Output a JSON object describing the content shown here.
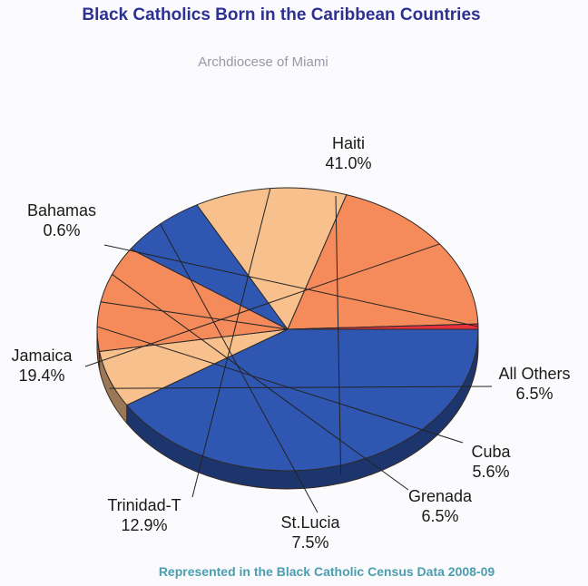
{
  "chart_data": {
    "type": "pie",
    "title": "Black Catholics Born in the Caribbean Countries",
    "subtitle": "Archdiocese of Miami",
    "source": "Represented in the Black Catholic Census Data 2008-09",
    "slices": [
      {
        "label": "Haiti",
        "pct_label": "41.0%",
        "value": 41.0,
        "color": "#2f56b0"
      },
      {
        "label": "All Others",
        "pct_label": "6.5%",
        "value": 6.5,
        "color": "#f8c08c"
      },
      {
        "label": "Cuba",
        "pct_label": "5.6%",
        "value": 5.6,
        "color": "#f58a5a"
      },
      {
        "label": "Grenada",
        "pct_label": "6.5%",
        "value": 6.5,
        "color": "#f58a5a"
      },
      {
        "label": "St.Lucia",
        "pct_label": "7.5%",
        "value": 7.5,
        "color": "#2f56b0"
      },
      {
        "label": "Trinidad-T",
        "pct_label": "12.9%",
        "value": 12.9,
        "color": "#f8c08c"
      },
      {
        "label": "Jamaica",
        "pct_label": "19.4%",
        "value": 19.4,
        "color": "#f58a5a"
      },
      {
        "label": "Bahamas",
        "pct_label": "0.6%",
        "value": 0.6,
        "color": "#e8303a"
      }
    ]
  }
}
